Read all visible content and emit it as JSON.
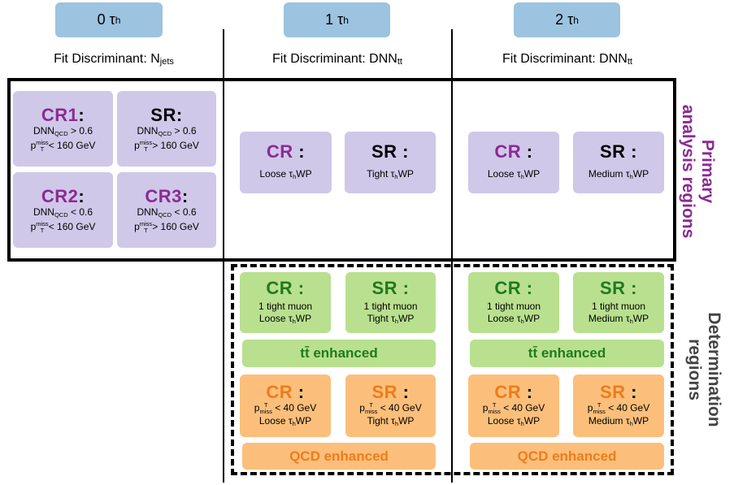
{
  "headers": [
    {
      "label": "0 τ",
      "sub": "h",
      "fit_prefix": "Fit Discriminant: N",
      "fit_sub": "jets"
    },
    {
      "label": "1 τ",
      "sub": "h",
      "fit_prefix": "Fit Discriminant: DNN",
      "fit_sub": "tt"
    },
    {
      "label": "2 τ",
      "sub": "h",
      "fit_prefix": "Fit Discriminant: DNN",
      "fit_sub": "tt"
    }
  ],
  "zero_tau": {
    "cr1": {
      "title": "CR1",
      "line1": "DNN",
      "line1_sub": "QCD",
      "line1_tail": "> 0.6",
      "line2_p": "p",
      "line2_sup": "miss",
      "line2_sub": "T",
      "line2_tail": "< 160 GeV"
    },
    "sr": {
      "title": "SR",
      "line1": "DNN",
      "line1_sub": "QCD",
      "line1_tail": "> 0.6",
      "line2_p": "p",
      "line2_sup": "miss",
      "line2_sub": "T",
      "line2_tail": "> 160 GeV"
    },
    "cr2": {
      "title": "CR2",
      "line1": "DNN",
      "line1_sub": "QCD",
      "line1_tail": "< 0.6",
      "line2_p": "p",
      "line2_sup": "miss",
      "line2_sub": "T",
      "line2_tail": "< 160 GeV"
    },
    "cr3": {
      "title": "CR3",
      "line1": "DNN",
      "line1_sub": "QCD",
      "line1_tail": "< 0.6",
      "line2_p": "p",
      "line2_sup": "miss",
      "line2_sub": "T",
      "line2_tail": "> 160 GeV"
    }
  },
  "primary": {
    "one_tau": {
      "cr": {
        "title": "CR",
        "wp_pre": "Loose τ",
        "wp_sub": "h",
        "wp_post": "WP"
      },
      "sr": {
        "title": "SR",
        "wp_pre": "Tight τ",
        "wp_sub": "h",
        "wp_post": "WP"
      }
    },
    "two_tau": {
      "cr": {
        "title": "CR",
        "wp_pre": "Loose τ",
        "wp_sub": "h",
        "wp_post": "WP"
      },
      "sr": {
        "title": "SR",
        "wp_pre": "Medium τ",
        "wp_sub": "h",
        "wp_post": "WP"
      }
    }
  },
  "determination": {
    "one_tau": {
      "ttbar": {
        "cr": {
          "title": "CR",
          "muon": "1 tight muon",
          "wp_pre": "Loose τ",
          "wp_sub": "h",
          "wp_post": "WP"
        },
        "sr": {
          "title": "SR",
          "muon": "1 tight muon",
          "wp_pre": "Tight τ",
          "wp_sub": "h",
          "wp_post": "WP"
        },
        "banner": "tt̄ enhanced"
      },
      "qcd": {
        "cr": {
          "title": "CR",
          "cut_p": "p",
          "cut_sup": "T",
          "cut_sub": "miss",
          "cut_tail": "< 40 GeV",
          "wp_pre": "Loose τ",
          "wp_sub": "h",
          "wp_post": "WP"
        },
        "sr": {
          "title": "SR",
          "cut_p": "p",
          "cut_sup": "T",
          "cut_sub": "miss",
          "cut_tail": "< 40 GeV",
          "wp_pre": "Tight τ",
          "wp_sub": "h",
          "wp_post": "WP"
        },
        "banner": "QCD enhanced"
      }
    },
    "two_tau": {
      "ttbar": {
        "cr": {
          "title": "CR",
          "muon": "1 tight muon",
          "wp_pre": "Loose τ",
          "wp_sub": "h",
          "wp_post": "WP"
        },
        "sr": {
          "title": "SR",
          "muon": "1 tight muon",
          "wp_pre": "Medium τ",
          "wp_sub": "h",
          "wp_post": "WP"
        },
        "banner": "tt̄ enhanced"
      },
      "qcd": {
        "cr": {
          "title": "CR",
          "cut_p": "p",
          "cut_sup": "T",
          "cut_sub": "miss",
          "cut_tail": "< 40 GeV",
          "wp_pre": "Loose τ",
          "wp_sub": "h",
          "wp_post": "WP"
        },
        "sr": {
          "title": "SR",
          "cut_p": "p",
          "cut_sup": "T",
          "cut_sub": "miss",
          "cut_tail": "< 40 GeV",
          "wp_pre": "Medium τ",
          "wp_sub": "h",
          "wp_post": "WP"
        },
        "banner": "QCD enhanced"
      }
    }
  },
  "side_labels": {
    "primary_line1": "Primary",
    "primary_line2": "analysis regions",
    "determination_line1": "Determination",
    "determination_line2": "regions"
  },
  "colors": {
    "header": "#9cc3e0",
    "purple_box": "#cfc8e8",
    "green_box": "#b9e08f",
    "orange_box": "#fbbf7b",
    "primary_text": "#8b2a93",
    "green_text": "#1f7a1f",
    "orange_text": "#ef7c1a",
    "side_text": "#444444"
  }
}
